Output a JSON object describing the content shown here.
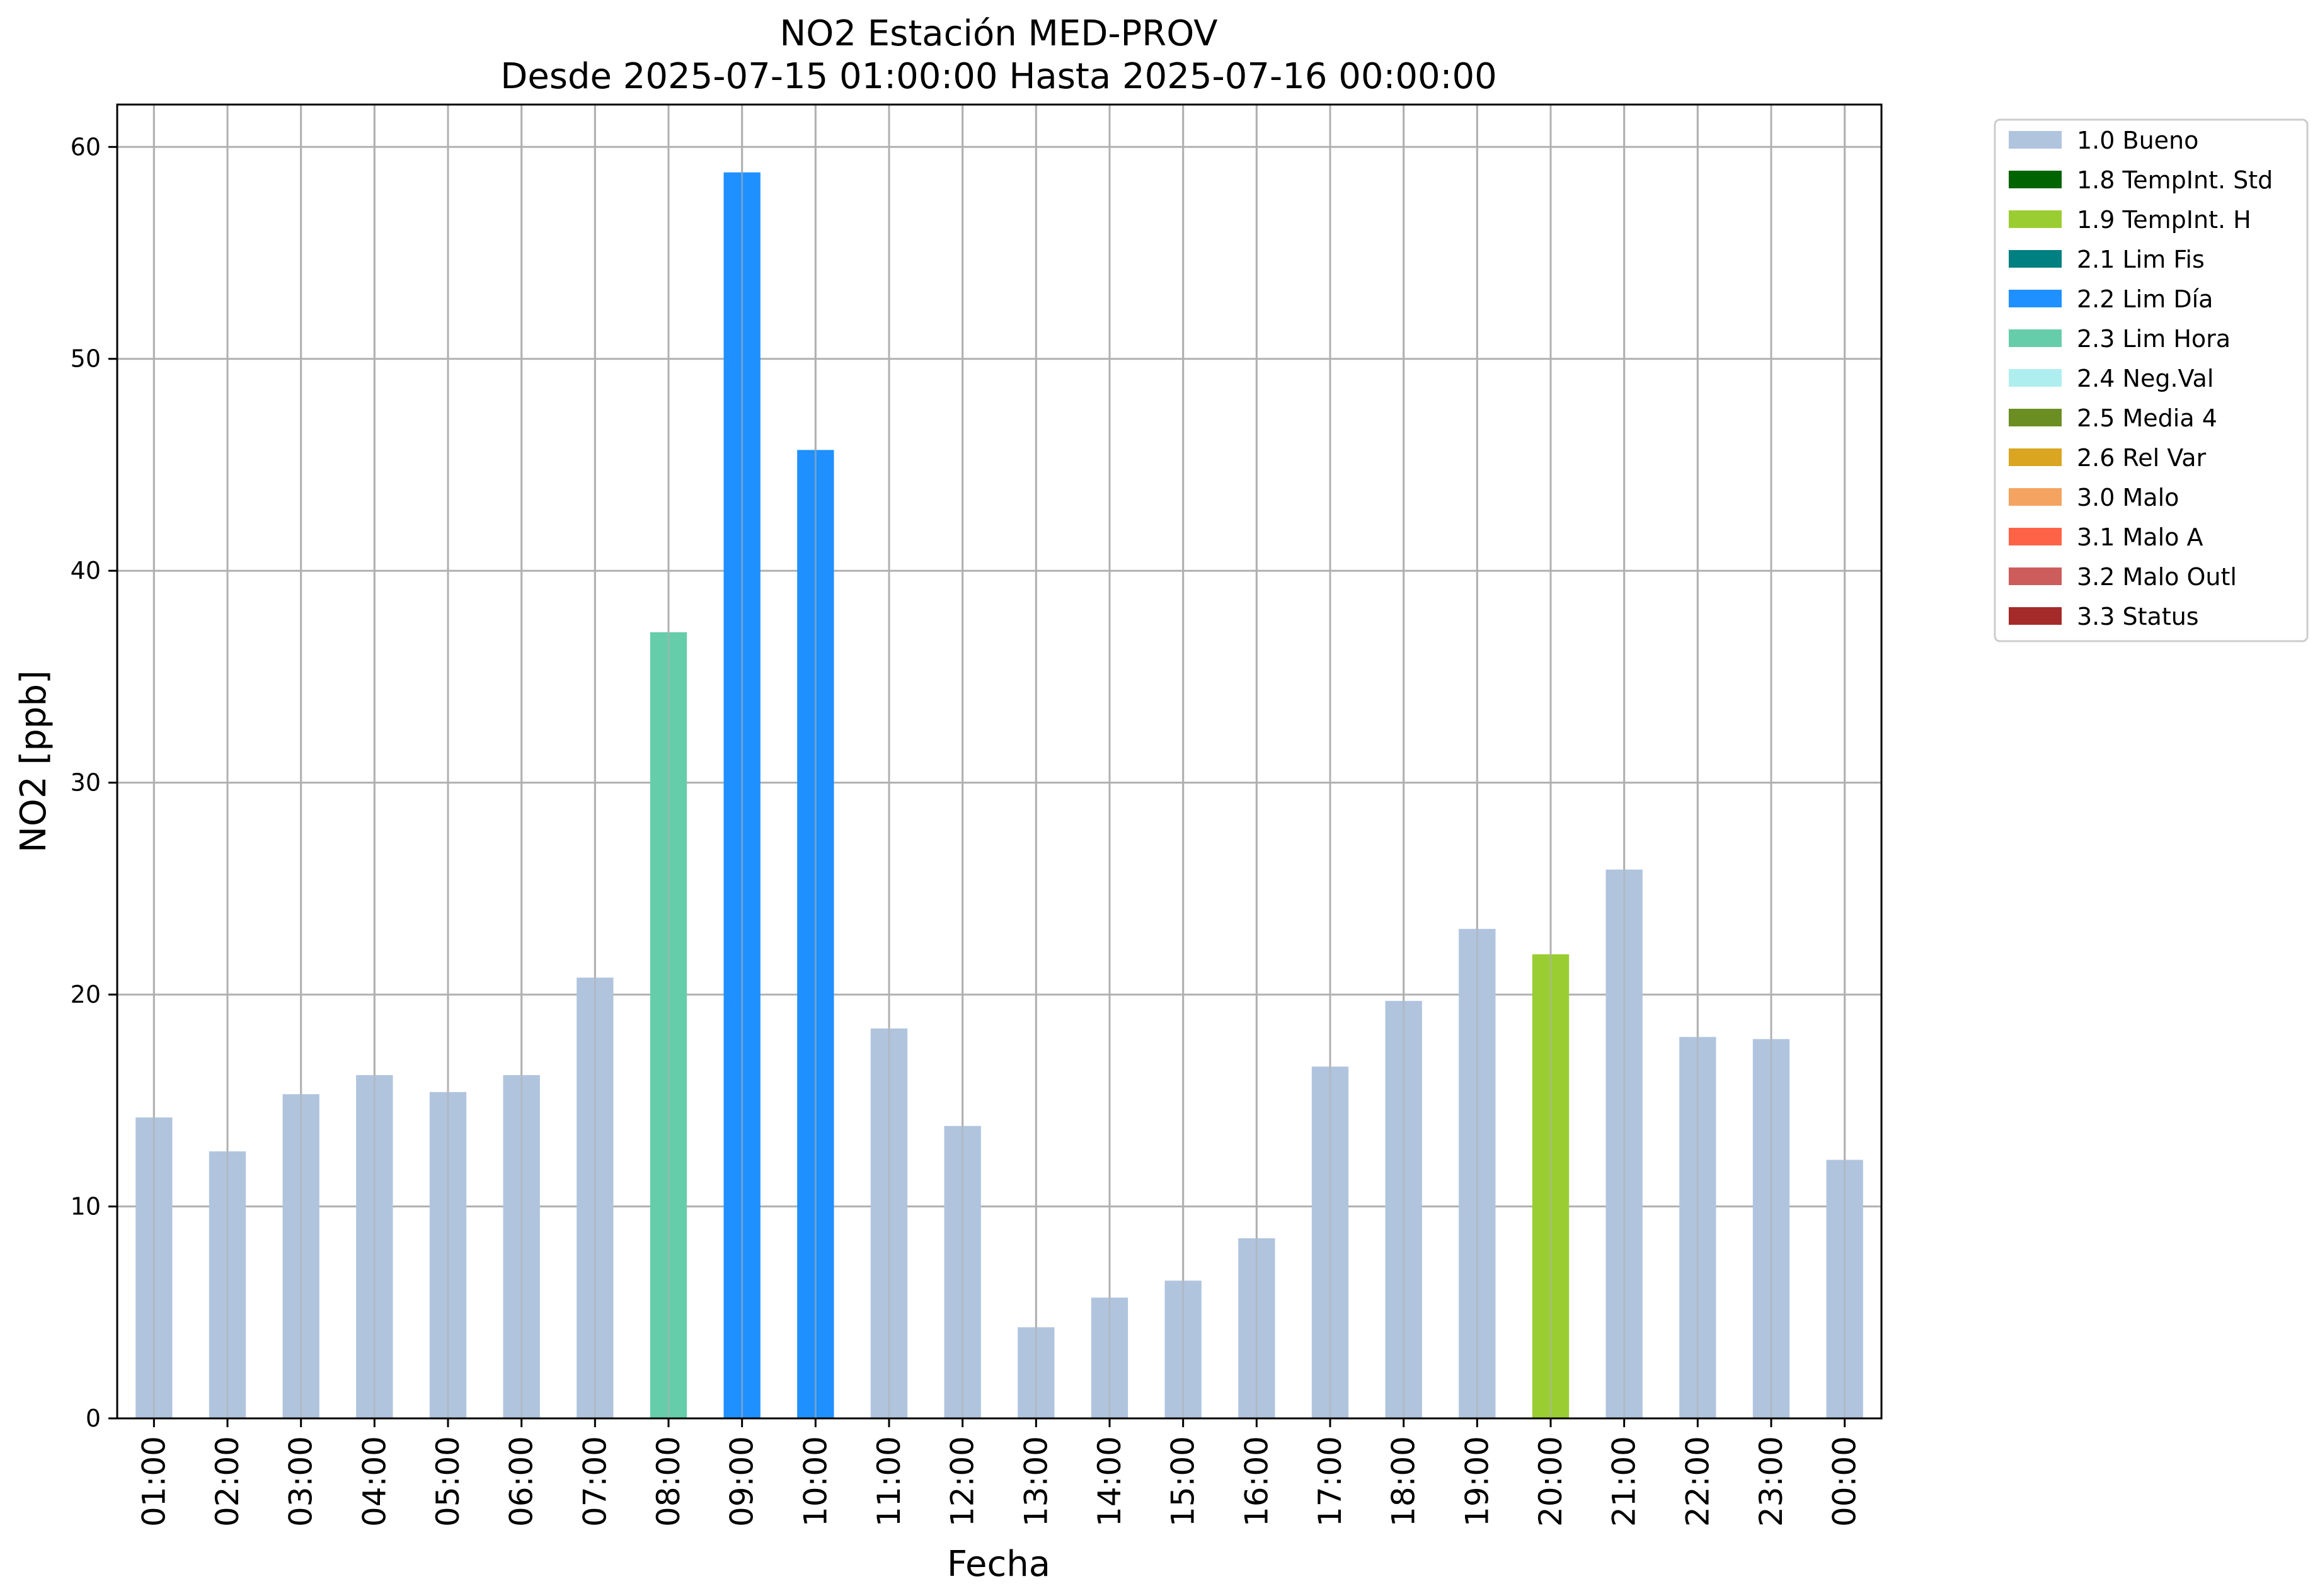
{
  "chart_data": {
    "type": "bar",
    "title": "NO2 Estación MED-PROV",
    "subtitle": "Desde 2025-07-15 01:00:00 Hasta 2025-07-16 00:00:00",
    "xlabel": "Fecha",
    "ylabel": "NO2 [ppb]",
    "ylim": [
      0,
      62
    ],
    "yticks": [
      0,
      10,
      20,
      30,
      40,
      50,
      60
    ],
    "grid": true,
    "legend_position": "outside-top-right",
    "categories": [
      "01:00",
      "02:00",
      "03:00",
      "04:00",
      "05:00",
      "06:00",
      "07:00",
      "08:00",
      "09:00",
      "10:00",
      "11:00",
      "12:00",
      "13:00",
      "14:00",
      "15:00",
      "16:00",
      "17:00",
      "18:00",
      "19:00",
      "20:00",
      "21:00",
      "22:00",
      "23:00",
      "00:00"
    ],
    "values": [
      14.2,
      12.6,
      15.3,
      16.2,
      15.4,
      16.2,
      20.8,
      37.1,
      58.8,
      45.7,
      18.4,
      13.8,
      4.3,
      5.7,
      6.5,
      8.5,
      16.6,
      19.7,
      23.1,
      21.9,
      25.9,
      18.0,
      17.9,
      12.2
    ],
    "flags": [
      "1.0 Bueno",
      "1.0 Bueno",
      "1.0 Bueno",
      "1.0 Bueno",
      "1.0 Bueno",
      "1.0 Bueno",
      "1.0 Bueno",
      "2.3 Lim Hora",
      "2.2 Lim Día",
      "2.2 Lim Día",
      "1.0 Bueno",
      "1.0 Bueno",
      "1.0 Bueno",
      "1.0 Bueno",
      "1.0 Bueno",
      "1.0 Bueno",
      "1.0 Bueno",
      "1.0 Bueno",
      "1.0 Bueno",
      "1.9 TempInt. H",
      "1.0 Bueno",
      "1.0 Bueno",
      "1.0 Bueno",
      "1.0 Bueno"
    ],
    "legend": [
      {
        "label": "1.0 Bueno",
        "color": "#B0C4DE"
      },
      {
        "label": "1.8 TempInt. Std",
        "color": "#006400"
      },
      {
        "label": "1.9 TempInt. H",
        "color": "#9ACD32"
      },
      {
        "label": "2.1 Lim Fis",
        "color": "#008080"
      },
      {
        "label": "2.2 Lim Día",
        "color": "#1E90FF"
      },
      {
        "label": "2.3 Lim Hora",
        "color": "#66CDAA"
      },
      {
        "label": "2.4 Neg.Val",
        "color": "#AFEEEE"
      },
      {
        "label": "2.5 Media 4",
        "color": "#6B8E23"
      },
      {
        "label": "2.6 Rel Var",
        "color": "#DAA520"
      },
      {
        "label": "3.0 Malo",
        "color": "#F4A460"
      },
      {
        "label": "3.1 Malo A",
        "color": "#FF6347"
      },
      {
        "label": "3.2 Malo Outl",
        "color": "#CD5C5C"
      },
      {
        "label": "3.3 Status",
        "color": "#A52A2A"
      }
    ]
  }
}
